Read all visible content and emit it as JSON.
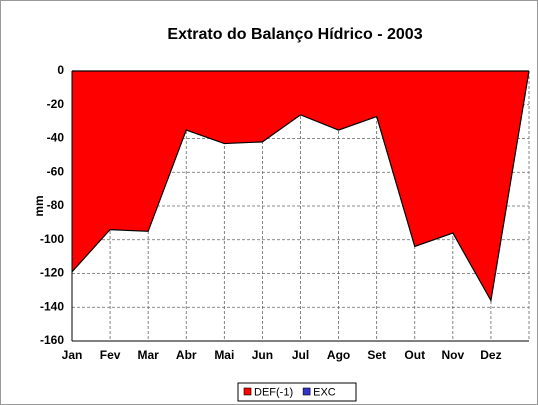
{
  "chart_data": {
    "type": "area",
    "title": "Extrato do Balanço Hídrico - 2003",
    "y_label": "mm",
    "categories": [
      "Jan",
      "Fev",
      "Mar",
      "Abr",
      "Mai",
      "Jun",
      "Jul",
      "Ago",
      "Set",
      "Out",
      "Nov",
      "Dez",
      null
    ],
    "series": [
      {
        "name": "DEF(-1)",
        "color": "#ff0000",
        "values": [
          -119,
          -94,
          -95,
          -35,
          -43,
          -42,
          -26,
          -35,
          -27,
          -104,
          -96,
          -136,
          0
        ]
      },
      {
        "name": "EXC",
        "color": "#3333cc",
        "values": [
          0,
          0,
          0,
          0,
          0,
          0,
          0,
          0,
          0,
          0,
          0,
          0,
          0
        ]
      }
    ],
    "ylim": [
      -160,
      0
    ],
    "yticks": [
      0,
      -20,
      -40,
      -60,
      -80,
      -100,
      -120,
      -140,
      -160
    ],
    "grid": true,
    "legend": "bottom"
  }
}
